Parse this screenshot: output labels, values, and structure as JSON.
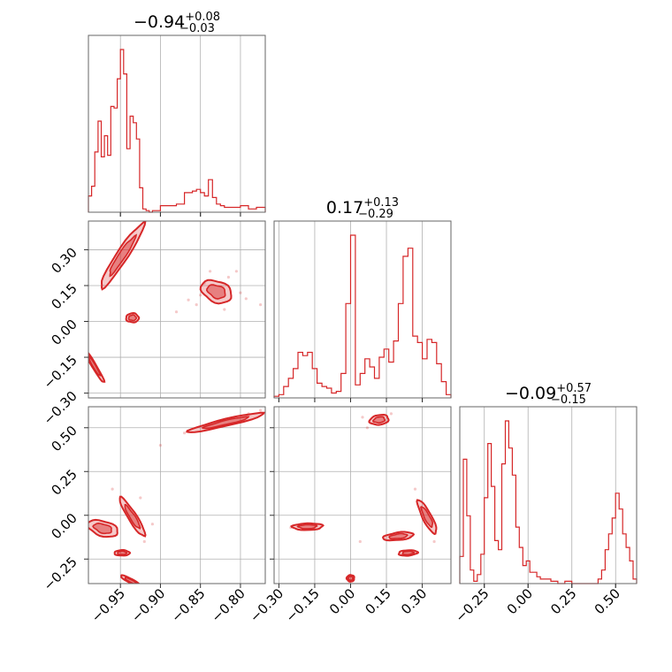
{
  "chart_data": {
    "type": "corner",
    "params": [
      {
        "title": {
          "median": "−0.94",
          "plus": "+0.08",
          "minus": "−0.03"
        },
        "range": [
          -0.99,
          -0.769
        ],
        "ticks": [
          -0.95,
          -0.9,
          -0.85,
          -0.8
        ],
        "tick_labels": [
          "−0.95",
          "−0.90",
          "−0.85",
          "−0.80"
        ],
        "hist": {
          "edges": [
            -0.99,
            -0.986,
            -0.982,
            -0.978,
            -0.974,
            -0.97,
            -0.966,
            -0.962,
            -0.958,
            -0.954,
            -0.95,
            -0.946,
            -0.942,
            -0.938,
            -0.934,
            -0.93,
            -0.926,
            -0.922,
            -0.918,
            -0.914,
            -0.91,
            -0.9,
            -0.89,
            -0.88,
            -0.87,
            -0.86,
            -0.855,
            -0.85,
            -0.845,
            -0.84,
            -0.835,
            -0.83,
            -0.825,
            -0.82,
            -0.81,
            -0.8,
            -0.79,
            -0.78,
            -0.769
          ],
          "counts": [
            0.1,
            0.16,
            0.37,
            0.56,
            0.34,
            0.47,
            0.35,
            0.65,
            0.64,
            0.82,
            1.0,
            0.85,
            0.39,
            0.59,
            0.55,
            0.45,
            0.15,
            0.02,
            0.01,
            0.0,
            0.01,
            0.04,
            0.04,
            0.05,
            0.12,
            0.13,
            0.14,
            0.12,
            0.1,
            0.2,
            0.09,
            0.05,
            0.04,
            0.03,
            0.03,
            0.04,
            0.02,
            0.03
          ]
        }
      },
      {
        "title": {
          "median": "0.17",
          "plus": "+0.13",
          "minus": "−0.29"
        },
        "range": [
          -0.32,
          0.42
        ],
        "ticks": [
          -0.3,
          -0.15,
          0.0,
          0.15,
          0.3
        ],
        "tick_labels": [
          "−0.30",
          "−0.15",
          "0.00",
          "0.15",
          "0.30"
        ],
        "hist": {
          "edges": [
            -0.32,
            -0.3,
            -0.28,
            -0.26,
            -0.24,
            -0.22,
            -0.2,
            -0.18,
            -0.16,
            -0.14,
            -0.12,
            -0.1,
            -0.08,
            -0.06,
            -0.04,
            -0.02,
            0.0,
            0.02,
            0.04,
            0.06,
            0.08,
            0.1,
            0.12,
            0.14,
            0.16,
            0.18,
            0.2,
            0.22,
            0.24,
            0.26,
            0.28,
            0.3,
            0.32,
            0.34,
            0.36,
            0.38,
            0.4,
            0.42
          ],
          "counts": [
            0.01,
            0.02,
            0.07,
            0.12,
            0.18,
            0.28,
            0.26,
            0.28,
            0.18,
            0.09,
            0.07,
            0.06,
            0.03,
            0.04,
            0.15,
            0.58,
            1.0,
            0.08,
            0.15,
            0.24,
            0.19,
            0.12,
            0.25,
            0.3,
            0.22,
            0.35,
            0.58,
            0.87,
            0.92,
            0.38,
            0.34,
            0.24,
            0.36,
            0.34,
            0.21,
            0.1,
            0.02
          ]
        }
      },
      {
        "title": {
          "median": "−0.09",
          "plus": "+0.57",
          "minus": "−0.15"
        },
        "range": [
          -0.39,
          0.62
        ],
        "ticks": [
          -0.25,
          0.0,
          0.25,
          0.5
        ],
        "tick_labels": [
          "−0.25",
          "0.00",
          "0.25",
          "0.50"
        ],
        "hist": {
          "edges": [
            -0.39,
            -0.37,
            -0.35,
            -0.33,
            -0.31,
            -0.29,
            -0.27,
            -0.25,
            -0.23,
            -0.21,
            -0.19,
            -0.17,
            -0.15,
            -0.13,
            -0.11,
            -0.09,
            -0.07,
            -0.05,
            -0.03,
            -0.01,
            0.01,
            0.03,
            0.05,
            0.07,
            0.09,
            0.13,
            0.17,
            0.21,
            0.25,
            0.3,
            0.35,
            0.4,
            0.42,
            0.44,
            0.46,
            0.48,
            0.5,
            0.52,
            0.54,
            0.56,
            0.58,
            0.6,
            0.62
          ],
          "counts": [
            0.12,
            0.55,
            0.3,
            0.06,
            0.01,
            0.04,
            0.13,
            0.38,
            0.62,
            0.43,
            0.19,
            0.15,
            0.53,
            0.72,
            0.6,
            0.48,
            0.25,
            0.16,
            0.08,
            0.1,
            0.05,
            0.05,
            0.03,
            0.02,
            0.02,
            0.01,
            0.0,
            0.01,
            0.0,
            0.0,
            0.0,
            0.02,
            0.06,
            0.15,
            0.22,
            0.29,
            0.4,
            0.33,
            0.22,
            0.16,
            0.1,
            0.02
          ]
        }
      }
    ],
    "pairs": [
      {
        "row": 1,
        "col": 0,
        "clusters": [
          {
            "cx": -0.948,
            "cy": 0.275,
            "sx": 0.017,
            "sy": 0.085,
            "rho": 0.95
          },
          {
            "cx": -0.935,
            "cy": 0.015,
            "sx": 0.005,
            "sy": 0.012,
            "rho": 0.0
          },
          {
            "cx": -0.983,
            "cy": -0.185,
            "sx": 0.008,
            "sy": 0.045,
            "rho": -0.97
          },
          {
            "cx": -0.83,
            "cy": 0.125,
            "sx": 0.012,
            "sy": 0.03,
            "rho": -0.3
          }
        ],
        "scatter": [
          [
            -0.855,
            0.07
          ],
          [
            -0.845,
            0.16
          ],
          [
            -0.815,
            0.185
          ],
          [
            -0.8,
            0.12
          ],
          [
            -0.793,
            0.095
          ],
          [
            -0.865,
            0.09
          ],
          [
            -0.88,
            0.04
          ],
          [
            -0.775,
            0.07
          ],
          [
            -0.82,
            0.05
          ],
          [
            -0.805,
            0.21
          ],
          [
            -0.838,
            0.21
          ],
          [
            -0.85,
            0.11
          ]
        ]
      },
      {
        "row": 2,
        "col": 0,
        "clusters": [
          {
            "cx": -0.972,
            "cy": -0.075,
            "sx": 0.012,
            "sy": 0.03,
            "rho": -0.4
          },
          {
            "cx": -0.935,
            "cy": -0.01,
            "sx": 0.01,
            "sy": 0.07,
            "rho": -0.92
          },
          {
            "cx": -0.948,
            "cy": -0.215,
            "sx": 0.006,
            "sy": 0.01,
            "rho": 0.0
          },
          {
            "cx": -0.937,
            "cy": -0.375,
            "sx": 0.008,
            "sy": 0.02,
            "rho": -0.9
          },
          {
            "cx": -0.818,
            "cy": 0.53,
            "sx": 0.03,
            "sy": 0.035,
            "rho": 0.93
          }
        ],
        "scatter": [
          [
            -0.87,
            0.47
          ],
          [
            -0.79,
            0.58
          ],
          [
            -0.775,
            0.6
          ],
          [
            -0.9,
            0.4
          ],
          [
            -0.925,
            0.1
          ],
          [
            -0.92,
            -0.15
          ],
          [
            -0.91,
            -0.05
          ],
          [
            -0.96,
            0.15
          ]
        ]
      },
      {
        "row": 2,
        "col": 1,
        "clusters": [
          {
            "cx": -0.18,
            "cy": -0.065,
            "sx": 0.04,
            "sy": 0.012,
            "rho": 0.1
          },
          {
            "cx": 0.0,
            "cy": -0.36,
            "sx": 0.01,
            "sy": 0.012,
            "rho": 0.0
          },
          {
            "cx": 0.12,
            "cy": 0.545,
            "sx": 0.025,
            "sy": 0.018,
            "rho": 0.2
          },
          {
            "cx": 0.2,
            "cy": -0.12,
            "sx": 0.04,
            "sy": 0.015,
            "rho": 0.4
          },
          {
            "cx": 0.24,
            "cy": -0.215,
            "sx": 0.025,
            "sy": 0.01,
            "rho": 0.2
          },
          {
            "cx": 0.32,
            "cy": -0.01,
            "sx": 0.025,
            "sy": 0.06,
            "rho": -0.85
          }
        ],
        "scatter": [
          [
            0.04,
            -0.15
          ],
          [
            0.05,
            0.56
          ],
          [
            0.17,
            0.58
          ],
          [
            0.35,
            -0.15
          ],
          [
            0.27,
            0.15
          ],
          [
            0.25,
            -0.12
          ],
          [
            -0.25,
            -0.07
          ],
          [
            0.07,
            0.5
          ]
        ]
      }
    ]
  }
}
